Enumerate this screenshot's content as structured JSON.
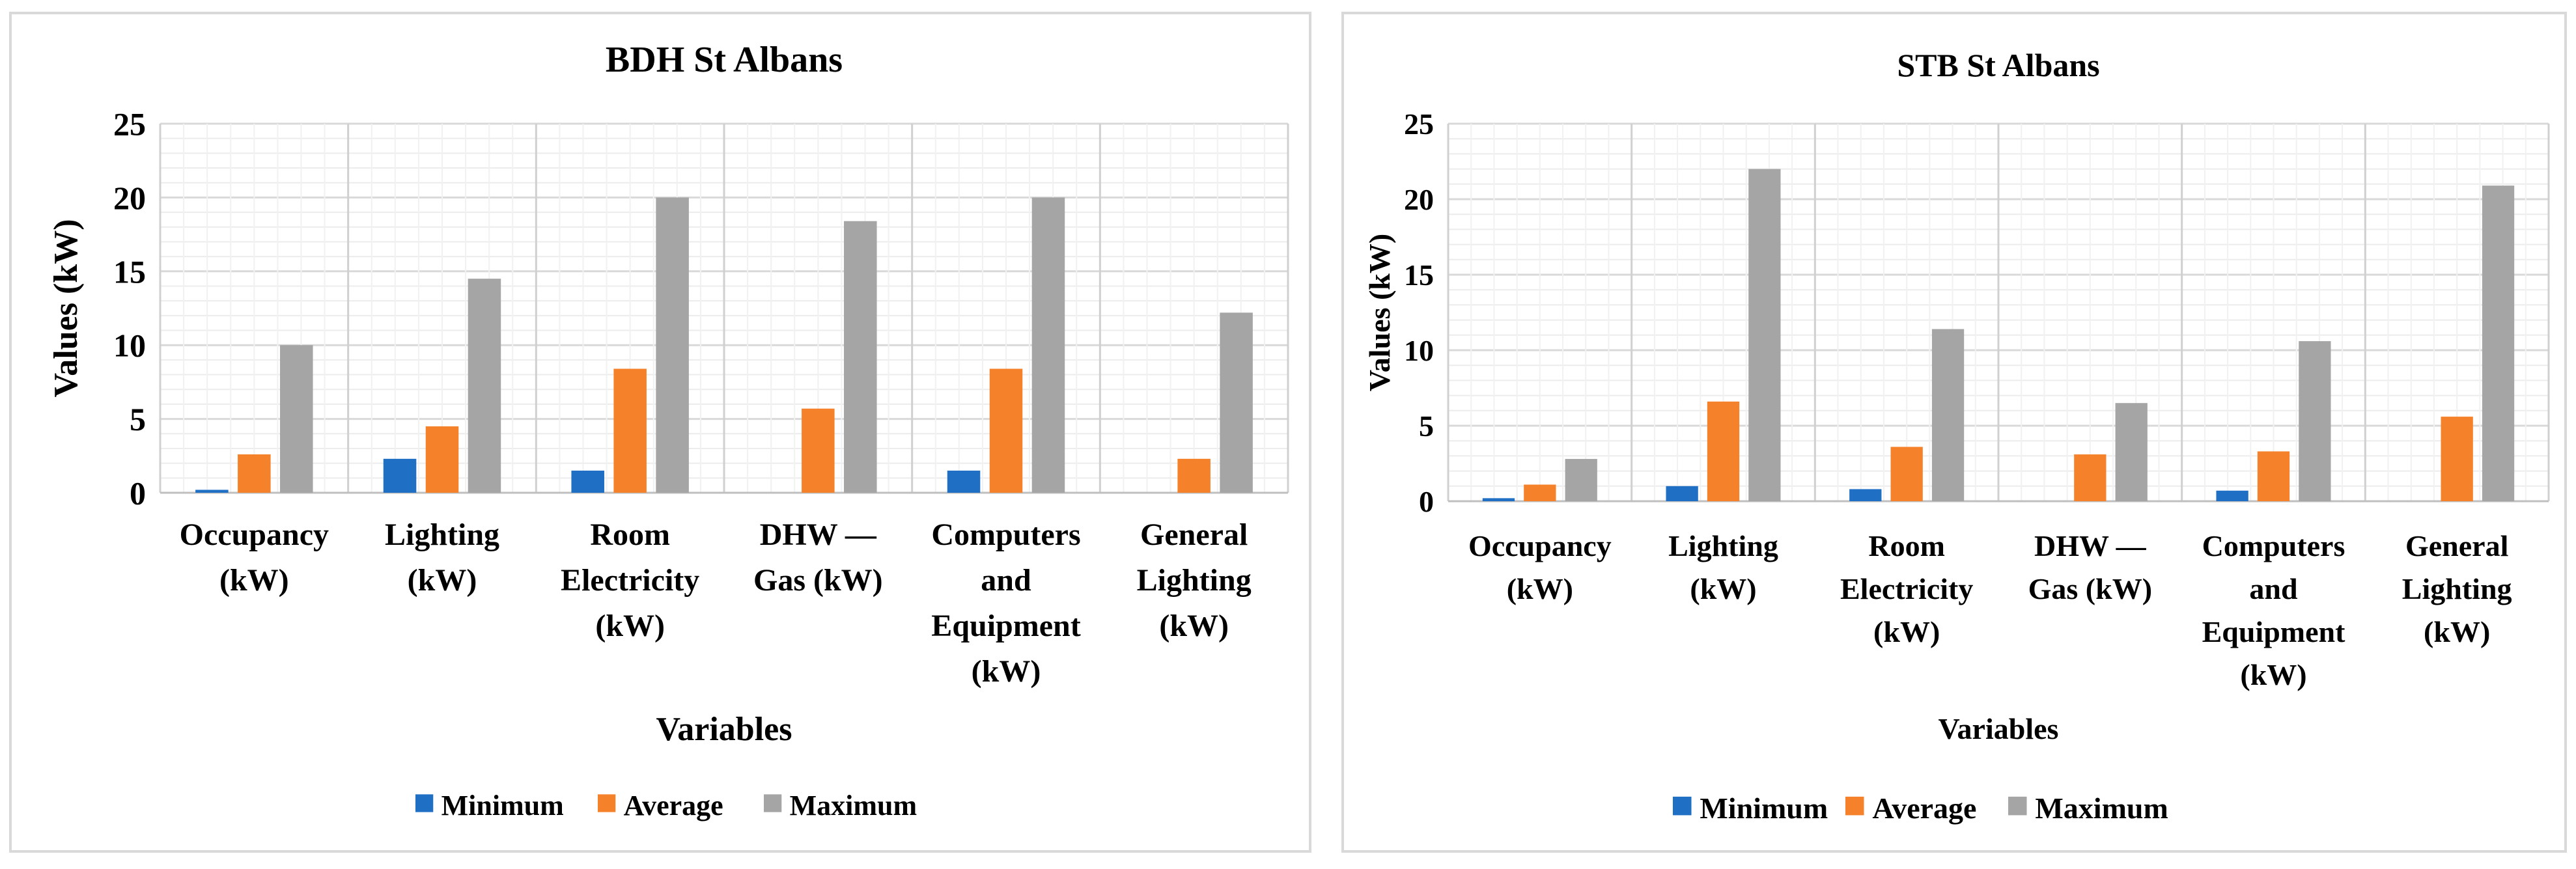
{
  "chart_data": [
    {
      "type": "bar",
      "title": "BDH St Albans",
      "xlabel": "Variables",
      "ylabel": "Values (kW)",
      "ylim": [
        0,
        25
      ],
      "yticks": [
        "0",
        "5",
        "10",
        "15",
        "20",
        "25"
      ],
      "categories": [
        [
          "Occupancy",
          "(kW)"
        ],
        [
          "Lighting",
          "(kW)"
        ],
        [
          "Room",
          "Electricity",
          "(kW)"
        ],
        [
          "DHW —",
          "Gas (kW)"
        ],
        [
          "Computers",
          "and",
          "Equipment",
          "(kW)"
        ],
        [
          "General",
          "Lighting",
          "(kW)"
        ]
      ],
      "series": [
        {
          "name": "Minimum",
          "color": "#1f6fc5",
          "values": [
            0.2,
            2.3,
            1.5,
            0,
            1.5,
            0
          ]
        },
        {
          "name": "Average",
          "color": "#f5822a",
          "values": [
            2.6,
            4.5,
            8.4,
            5.7,
            8.4,
            2.3
          ]
        },
        {
          "name": "Maximum",
          "color": "#a5a5a5",
          "values": [
            10,
            14.5,
            20,
            18.4,
            20,
            12.2
          ]
        }
      ],
      "legend_position": "bottom",
      "grid": true
    },
    {
      "type": "bar",
      "title": "STB St Albans",
      "xlabel": "Variables",
      "ylabel": "Values (kW)",
      "ylim": [
        0,
        25
      ],
      "yticks": [
        "0",
        "5",
        "10",
        "15",
        "20",
        "25"
      ],
      "categories": [
        [
          "Occupancy",
          "(kW)"
        ],
        [
          "Lighting",
          "(kW)"
        ],
        [
          "Room",
          "Electricity",
          "(kW)"
        ],
        [
          "DHW —",
          "Gas (kW)"
        ],
        [
          "Computers",
          "and",
          "Equipment",
          "(kW)"
        ],
        [
          "General",
          "Lighting",
          "(kW)"
        ]
      ],
      "series": [
        {
          "name": "Minimum",
          "color": "#1f6fc5",
          "values": [
            0.2,
            1,
            0.8,
            0,
            0.7,
            0
          ]
        },
        {
          "name": "Average",
          "color": "#f5822a",
          "values": [
            1.1,
            6.6,
            3.6,
            3.1,
            3.3,
            5.6
          ]
        },
        {
          "name": "Maximum",
          "color": "#a5a5a5",
          "values": [
            2.8,
            22,
            11.4,
            6.5,
            10.6,
            20.9
          ]
        }
      ],
      "legend_position": "bottom",
      "grid": true
    }
  ]
}
